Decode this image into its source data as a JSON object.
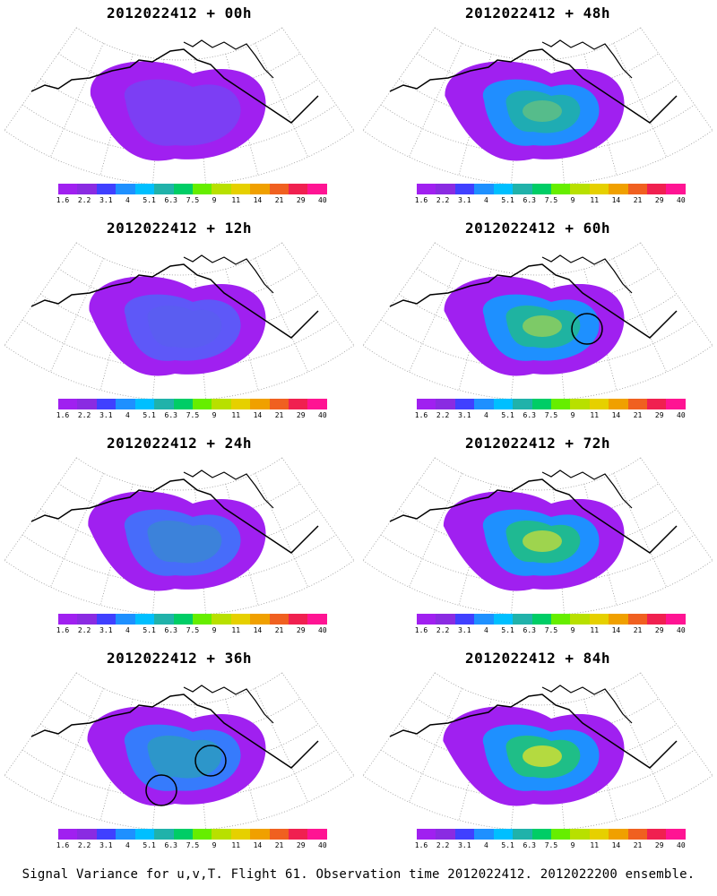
{
  "panels": [
    {
      "title": "2012022412 + 00h",
      "level": 0.15,
      "circles": 0
    },
    {
      "title": "2012022412 + 48h",
      "level": 0.55,
      "circles": 0
    },
    {
      "title": "2012022412 + 12h",
      "level": 0.28,
      "circles": 0
    },
    {
      "title": "2012022412 + 60h",
      "level": 0.62,
      "circles": 1
    },
    {
      "title": "2012022412 + 24h",
      "level": 0.38,
      "circles": 0
    },
    {
      "title": "2012022412 + 72h",
      "level": 0.68,
      "circles": 0
    },
    {
      "title": "2012022412 + 36h",
      "level": 0.45,
      "circles": 2
    },
    {
      "title": "2012022412 + 84h",
      "level": 0.72,
      "circles": 0
    }
  ],
  "colorbar": {
    "ticks": [
      "1.6",
      "2.2",
      "3.1",
      "4",
      "5.1",
      "6.3",
      "7.5",
      "9",
      "11",
      "14",
      "21",
      "29",
      "40"
    ],
    "colors": [
      "#a020f0",
      "#8a2be2",
      "#4040ff",
      "#1e90ff",
      "#00bfff",
      "#20b2aa",
      "#00cd66",
      "#66ee00",
      "#b8e000",
      "#e6d000",
      "#f0a000",
      "#f06020",
      "#f02050",
      "#ff1493"
    ]
  },
  "footer": "Signal Variance for u,v,T. Flight 61. Observation time 2012022412. 2012022200 ensemble."
}
